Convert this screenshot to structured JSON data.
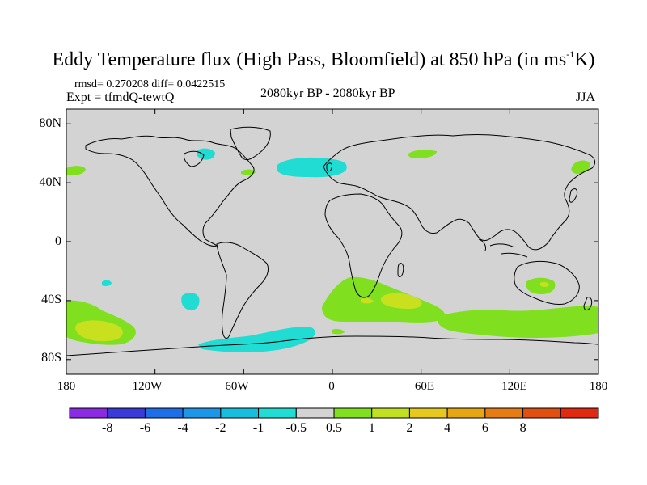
{
  "title": {
    "main": "Eddy Temperature flux (High Pass, Bloomfield) at 850 hPa (in ms",
    "sup": "-1",
    "end": "K)"
  },
  "stats": "rmsd= 0.270208 diff= 0.0422515",
  "experiment": "Expt = tfmdQ-tewtQ",
  "period": "2080kyr BP - 2080kyr BP",
  "season": "JJA",
  "map": {
    "lat_ticks": [
      "80N",
      "40N",
      "0",
      "40S",
      "80S"
    ],
    "lon_ticks": [
      "180",
      "120W",
      "60W",
      "0",
      "60E",
      "120E",
      "180"
    ],
    "background_color": "#d3d3d3"
  },
  "colorbar": {
    "colors": [
      "#8a2be2",
      "#3a3ad8",
      "#1e6ee8",
      "#1e96e8",
      "#18bede",
      "#20dcd2",
      "#d3d3d3",
      "#80e020",
      "#c0e020",
      "#e6c81e",
      "#e6a614",
      "#e67c14",
      "#e05010",
      "#e02a10"
    ],
    "labels": [
      "-8",
      "-6",
      "-4",
      "-2",
      "-1",
      "-0.5",
      "0.5",
      "1",
      "2",
      "4",
      "6",
      "8"
    ]
  },
  "regions": {
    "cyan": "#20dcd2",
    "green": "#80e020",
    "yellow": "#c8e01e"
  }
}
